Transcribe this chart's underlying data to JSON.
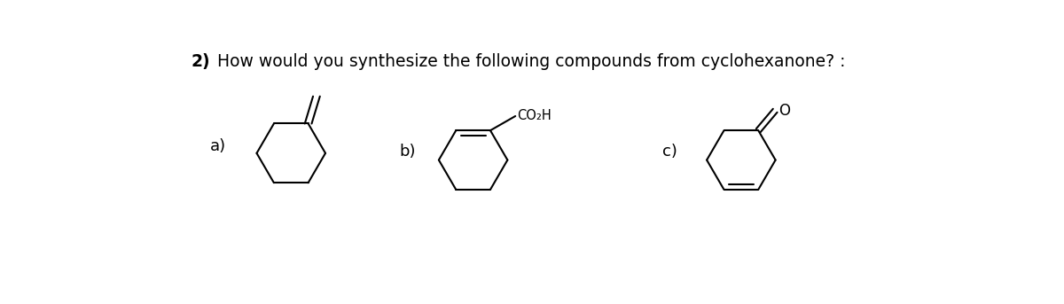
{
  "background_color": "#ffffff",
  "title_bold": "2)",
  "title_rest": " How would you synthesize the following compounds from cyclohexanone? :",
  "title_fontsize": 13.5,
  "label_a": "a)",
  "label_b": "b)",
  "label_c": "c)",
  "label_fontsize": 13,
  "lw": 1.5,
  "fig_width": 12.0,
  "fig_height": 3.43,
  "dpi": 100
}
